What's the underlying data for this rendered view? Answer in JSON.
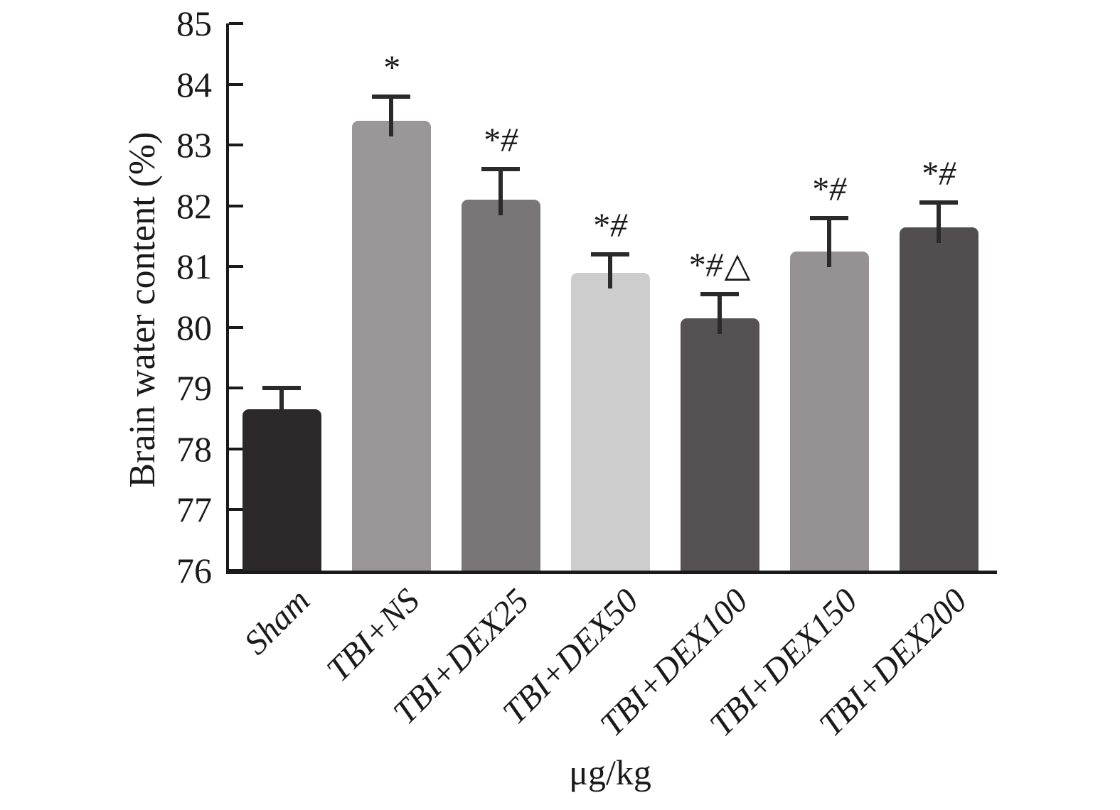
{
  "figure": {
    "background": "#ffffff",
    "axis_color": "#1a1a1a",
    "error_bar_color": "#2a2a2a"
  },
  "chart_data": {
    "type": "bar",
    "title": "",
    "xlabel": "μg/kg",
    "ylabel": "Brain water content (%)",
    "ylim": [
      76,
      85
    ],
    "yticks": [
      76,
      77,
      78,
      79,
      80,
      81,
      82,
      83,
      84,
      85
    ],
    "grid": false,
    "legend": null,
    "categories": [
      "Sham",
      "TBI+NS",
      "TBI+DEX25",
      "TBI+DEX50",
      "TBI+DEX100",
      "TBI+DEX150",
      "TBI+DEX200"
    ],
    "values": [
      78.65,
      83.4,
      82.1,
      80.9,
      80.15,
      81.25,
      81.65
    ],
    "errors_upper": [
      0.35,
      0.4,
      0.5,
      0.3,
      0.4,
      0.55,
      0.4
    ],
    "annotations": [
      "",
      "*",
      "*#",
      "*#",
      "*#△",
      "*#",
      "*#"
    ],
    "bar_colors": [
      "#2d292a",
      "#9b9799",
      "#7a7678",
      "#cecdce",
      "#565253",
      "#969294",
      "#524e4f"
    ]
  }
}
